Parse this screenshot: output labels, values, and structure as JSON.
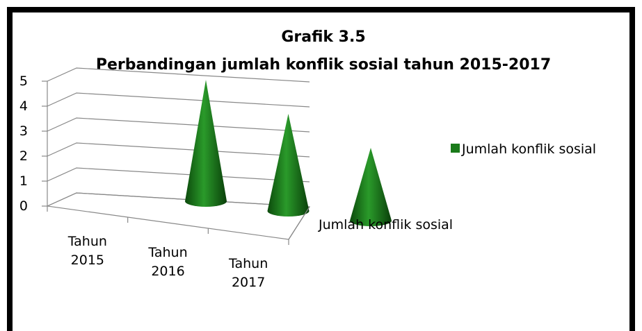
{
  "chart_data": {
    "type": "cone3d",
    "title": "Grafik 3.5",
    "subtitle": "Perbandingan jumlah konflik sosial tahun 2015-2017",
    "categories": [
      "Tahun 2015",
      "Tahun 2016",
      "Tahun 2017"
    ],
    "series": [
      {
        "name": "Jumlah konflik sosial",
        "color": "#1a7a1a",
        "values": [
          5,
          4,
          3
        ]
      }
    ],
    "depth_label": "Jumlah konflik sosial",
    "ylim": [
      0,
      5
    ],
    "yticks": [
      0,
      1,
      2,
      3,
      4,
      5
    ],
    "grid": true,
    "legend": "right"
  }
}
